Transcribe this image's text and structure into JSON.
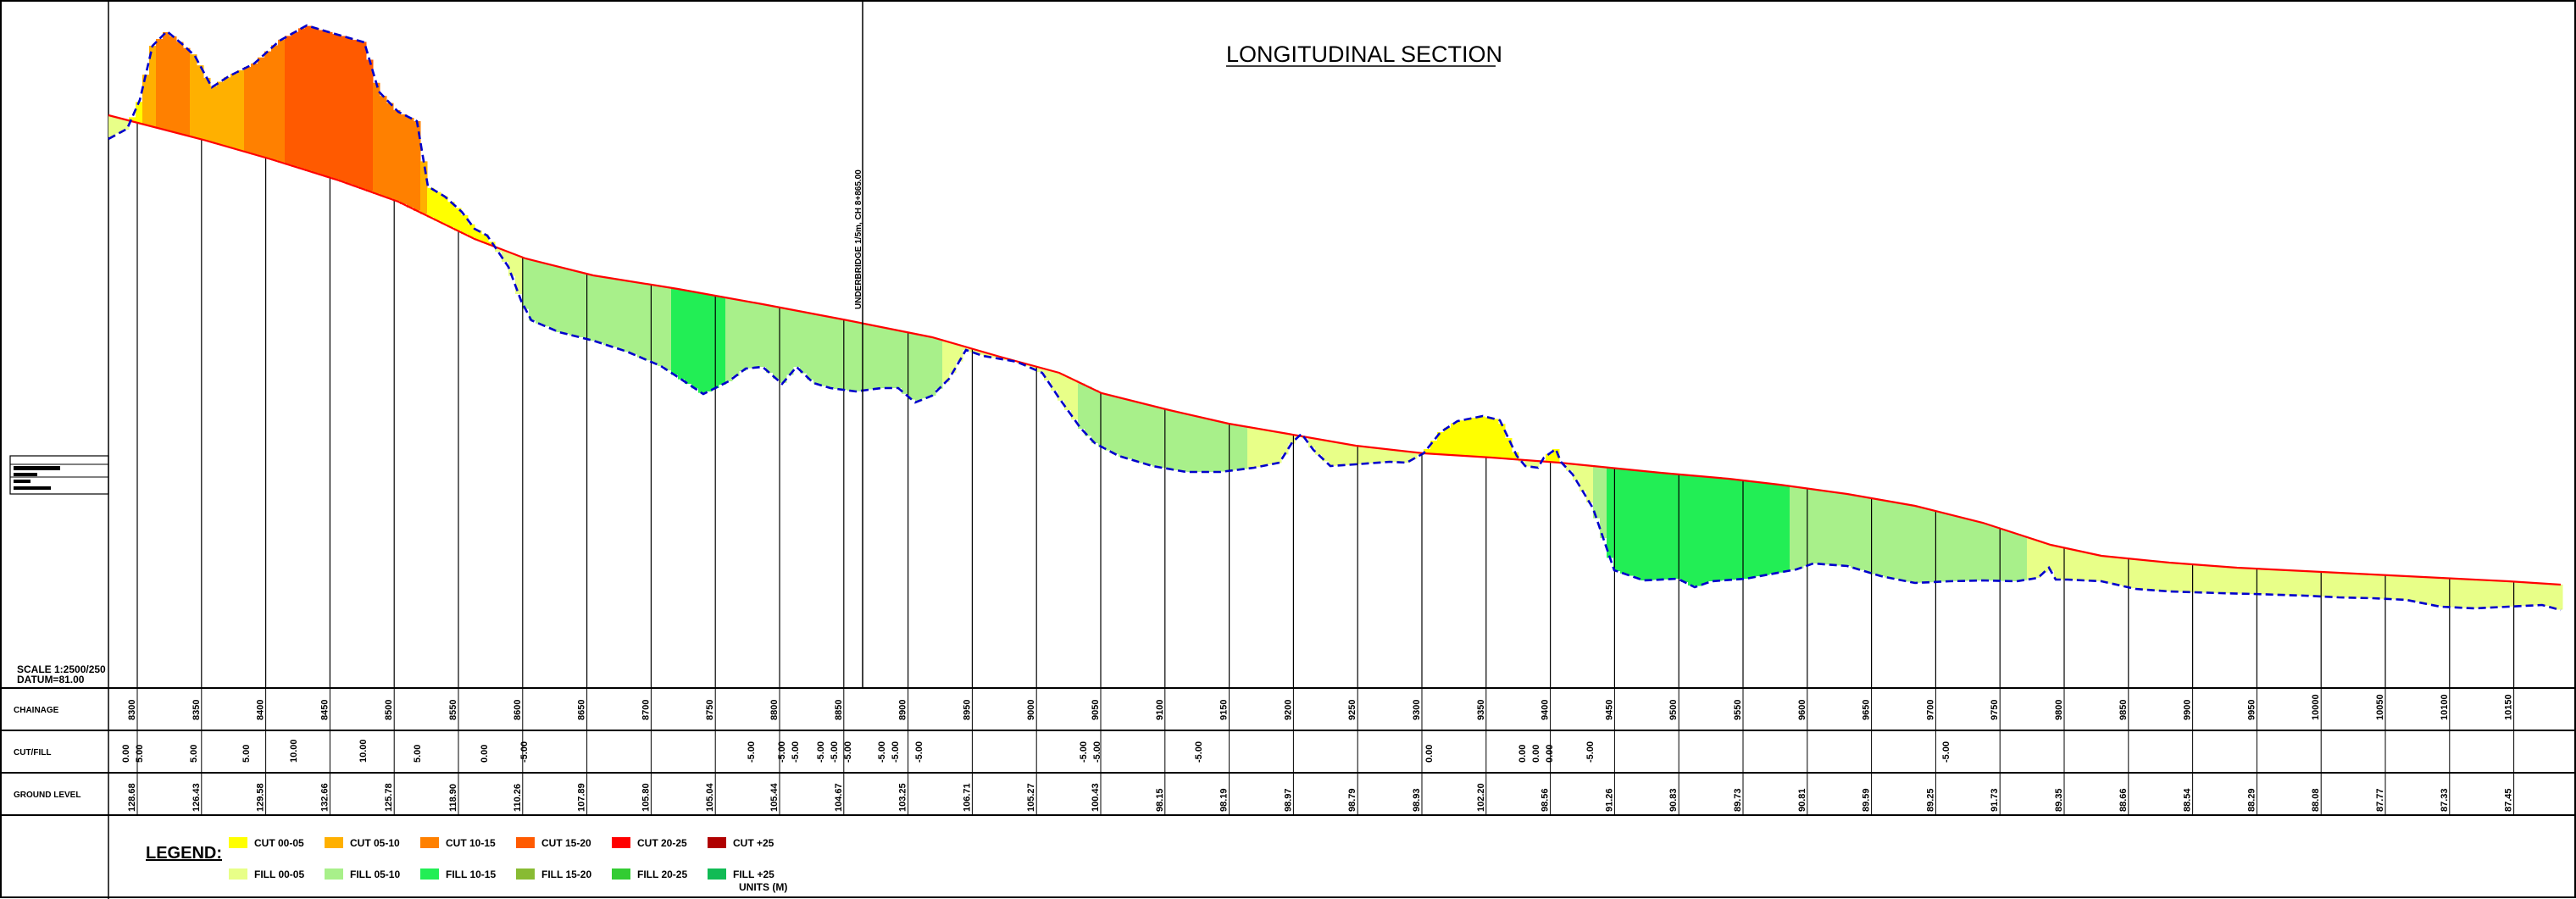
{
  "title": "LONGITUDINAL SECTION",
  "scale_line": "SCALE 1:2500/250",
  "datum_line": "DATUM=81.00",
  "annotation": "UNDERBRIDGE 1/5m, CH 8+865.00",
  "row_labels": {
    "chainage": "CHAINAGE",
    "cutfill": "CUT/FILL",
    "ground": "GROUND LEVEL"
  },
  "legend": {
    "title": "LEGEND:",
    "units": "UNITS (M)",
    "items": [
      {
        "label": "CUT 00-05",
        "color": "#ffff00"
      },
      {
        "label": "CUT 05-10",
        "color": "#ffb000"
      },
      {
        "label": "CUT 10-15",
        "color": "#ff8000"
      },
      {
        "label": "CUT 15-20",
        "color": "#ff5a00"
      },
      {
        "label": "CUT 20-25",
        "color": "#ff0000"
      },
      {
        "label": "CUT +25",
        "color": "#b00000"
      },
      {
        "label": "FILL 00-05",
        "color": "#e8ff88"
      },
      {
        "label": "FILL 05-10",
        "color": "#a8f08a"
      },
      {
        "label": "FILL 10-15",
        "color": "#22ee55"
      },
      {
        "label": "FILL 15-20",
        "color": "#88bb33"
      },
      {
        "label": "FILL 20-25",
        "color": "#33cc33"
      },
      {
        "label": "FILL +25",
        "color": "#11bb55"
      }
    ]
  },
  "colors": {
    "design_line": "#ff0000",
    "ground_line": "#0000cc"
  },
  "chart_data": {
    "type": "area",
    "xlabel": "CHAINAGE",
    "ylabel": "",
    "stations": [
      "8300",
      "8350",
      "8400",
      "8450",
      "8500",
      "8550",
      "8600",
      "8650",
      "8700",
      "8750",
      "8800",
      "8850",
      "8900",
      "8950",
      "9000",
      "9050",
      "9100",
      "9150",
      "9200",
      "9250",
      "9300",
      "9350",
      "9400",
      "9450",
      "9500",
      "9550",
      "9600",
      "9650",
      "9700",
      "9750",
      "9800",
      "9850",
      "9900",
      "9950",
      "10000",
      "10050",
      "10100",
      "10150"
    ],
    "ground_level": [
      "128.68",
      "126.43",
      "129.58",
      "132.66",
      "125.78",
      "118.90",
      "110.26",
      "107.89",
      "105.80",
      "105.04",
      "105.44",
      "104.67",
      "103.25",
      "106.71",
      "105.27",
      "100.43",
      "98.15",
      "98.19",
      "98.97",
      "98.79",
      "98.93",
      "102.20",
      "98.56",
      "91.26",
      "90.83",
      "89.73",
      "90.81",
      "89.59",
      "89.25",
      "91.73",
      "89.35",
      "88.66",
      "88.54",
      "88.29",
      "88.08",
      "87.77",
      "87.33",
      "87.45"
    ],
    "cutfill_text": [
      [
        "0.00",
        "5.00"
      ],
      [
        "5.00"
      ],
      [
        "5.00"
      ],
      [
        "10.00"
      ],
      [
        "10.00"
      ],
      [
        "5.00"
      ],
      [
        "0.00"
      ],
      [
        "-5.00"
      ],
      [
        "-5.00"
      ],
      [
        "-5.00",
        "-5.00"
      ],
      [
        "-5.00",
        "-5.00",
        "-5.00"
      ],
      [
        "-5.00",
        "-5.00"
      ],
      [
        "-5.00"
      ],
      [
        "-5.00",
        "-5.00"
      ],
      [
        "-5.00"
      ],
      [
        "0.00"
      ],
      [
        "0.00",
        "0.00",
        "0.00"
      ],
      [
        "-5.00"
      ],
      [
        "-5.00"
      ]
    ]
  }
}
